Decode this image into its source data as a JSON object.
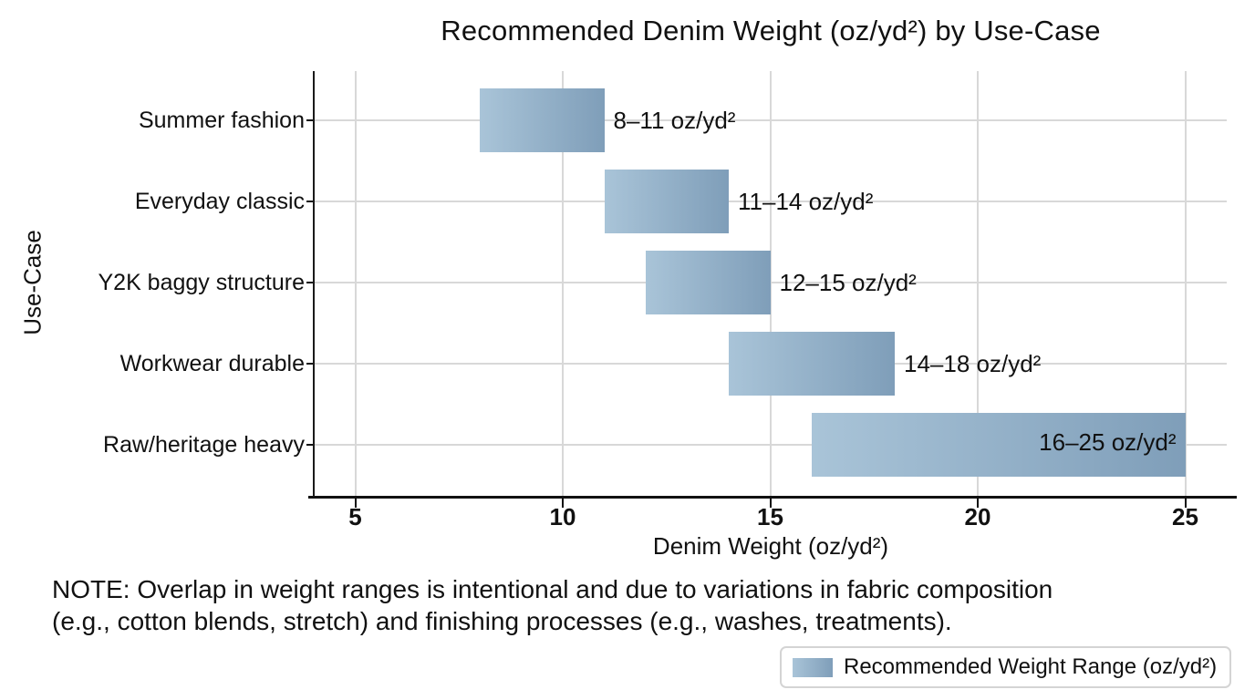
{
  "chart_data": {
    "type": "bar",
    "variant": "horizontal-range-bars",
    "title": "Recommended Denim Weight (oz/yd²) by Use-Case",
    "xlabel": "Denim Weight (oz/yd²)",
    "ylabel": "Use-Case",
    "categories": [
      "Summer fashion",
      "Everyday classic",
      "Y2K baggy structure",
      "Workwear durable",
      "Raw/heritage heavy"
    ],
    "series": [
      {
        "name": "Recommended Weight Range (oz/yd²)",
        "ranges": [
          [
            8,
            11
          ],
          [
            11,
            14
          ],
          [
            12,
            15
          ],
          [
            14,
            18
          ],
          [
            16,
            25
          ]
        ]
      }
    ],
    "bar_labels": [
      "8–11 oz/yd²",
      "11–14 oz/yd²",
      "12–15 oz/yd²",
      "14–18 oz/yd²",
      "16–25 oz/yd²"
    ],
    "xlim": [
      4,
      26
    ],
    "xticks": [
      5,
      10,
      15,
      20,
      25
    ],
    "grid": true,
    "legend": {
      "label": "Recommended Weight Range (oz/yd²)",
      "position": "bottom-right"
    },
    "colors": {
      "bar_gradient_start": "#a9c4d8",
      "bar_gradient_end": "#7f9eb9",
      "gridline": "#d8d8d8",
      "axis": "#111111",
      "text": "#111111",
      "background": "#ffffff"
    }
  },
  "note": {
    "line1": "NOTE: Overlap in weight ranges is intentional and due to variations in fabric composition",
    "line2": "(e.g., cotton blends, stretch) and finishing processes (e.g., washes, treatments)."
  }
}
